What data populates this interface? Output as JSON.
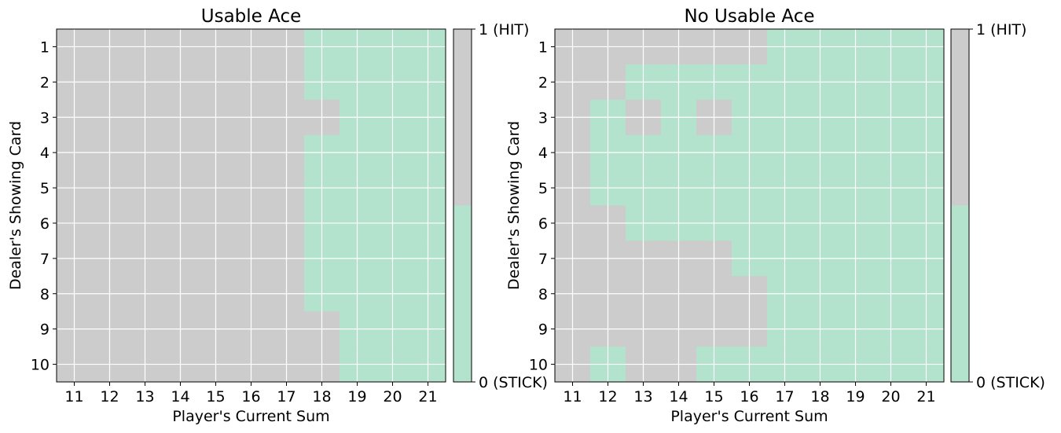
{
  "colors": {
    "hit": "#cccccc",
    "stick": "#b3e2cd",
    "grid": "#ffffff",
    "axis": "#000000",
    "background": "#ffffff"
  },
  "chart_data": [
    {
      "type": "heatmap",
      "title": "Usable Ace",
      "xlabel": "Player's Current Sum",
      "ylabel": "Dealer's Showing Card",
      "x": [
        11,
        12,
        13,
        14,
        15,
        16,
        17,
        18,
        19,
        20,
        21
      ],
      "y": [
        1,
        2,
        3,
        4,
        5,
        6,
        7,
        8,
        9,
        10
      ],
      "values": [
        [
          1,
          1,
          1,
          1,
          1,
          1,
          1,
          0,
          0,
          0,
          0
        ],
        [
          1,
          1,
          1,
          1,
          1,
          1,
          1,
          0,
          0,
          0,
          0
        ],
        [
          1,
          1,
          1,
          1,
          1,
          1,
          1,
          1,
          0,
          0,
          0
        ],
        [
          1,
          1,
          1,
          1,
          1,
          1,
          1,
          0,
          0,
          0,
          0
        ],
        [
          1,
          1,
          1,
          1,
          1,
          1,
          1,
          0,
          0,
          0,
          0
        ],
        [
          1,
          1,
          1,
          1,
          1,
          1,
          1,
          0,
          0,
          0,
          0
        ],
        [
          1,
          1,
          1,
          1,
          1,
          1,
          1,
          0,
          0,
          0,
          0
        ],
        [
          1,
          1,
          1,
          1,
          1,
          1,
          1,
          0,
          0,
          0,
          0
        ],
        [
          1,
          1,
          1,
          1,
          1,
          1,
          1,
          1,
          0,
          0,
          0
        ],
        [
          1,
          1,
          1,
          1,
          1,
          1,
          1,
          1,
          0,
          0,
          0
        ]
      ],
      "grid": true,
      "colorbar": {
        "ticks": [
          "0 (STICK)",
          "1 (HIT)"
        ],
        "range": [
          0,
          1
        ]
      }
    },
    {
      "type": "heatmap",
      "title": "No Usable Ace",
      "xlabel": "Player's Current Sum",
      "ylabel": "Dealer's Showing Card",
      "x": [
        11,
        12,
        13,
        14,
        15,
        16,
        17,
        18,
        19,
        20,
        21
      ],
      "y": [
        1,
        2,
        3,
        4,
        5,
        6,
        7,
        8,
        9,
        10
      ],
      "values": [
        [
          1,
          1,
          1,
          1,
          1,
          1,
          0,
          0,
          0,
          0,
          0
        ],
        [
          1,
          1,
          0,
          0,
          0,
          0,
          0,
          0,
          0,
          0,
          0
        ],
        [
          1,
          0,
          1,
          0,
          1,
          0,
          0,
          0,
          0,
          0,
          0
        ],
        [
          1,
          0,
          0,
          0,
          0,
          0,
          0,
          0,
          0,
          0,
          0
        ],
        [
          1,
          0,
          0,
          0,
          0,
          0,
          0,
          0,
          0,
          0,
          0
        ],
        [
          1,
          1,
          0,
          0,
          0,
          0,
          0,
          0,
          0,
          0,
          0
        ],
        [
          1,
          1,
          1,
          1,
          1,
          0,
          0,
          0,
          0,
          0,
          0
        ],
        [
          1,
          1,
          1,
          1,
          1,
          1,
          0,
          0,
          0,
          0,
          0
        ],
        [
          1,
          1,
          1,
          1,
          1,
          1,
          0,
          0,
          0,
          0,
          0
        ],
        [
          1,
          0,
          1,
          1,
          0,
          0,
          0,
          0,
          0,
          0,
          0
        ]
      ],
      "grid": true,
      "colorbar": {
        "ticks": [
          "0 (STICK)",
          "1 (HIT)"
        ],
        "range": [
          0,
          1
        ]
      }
    }
  ]
}
